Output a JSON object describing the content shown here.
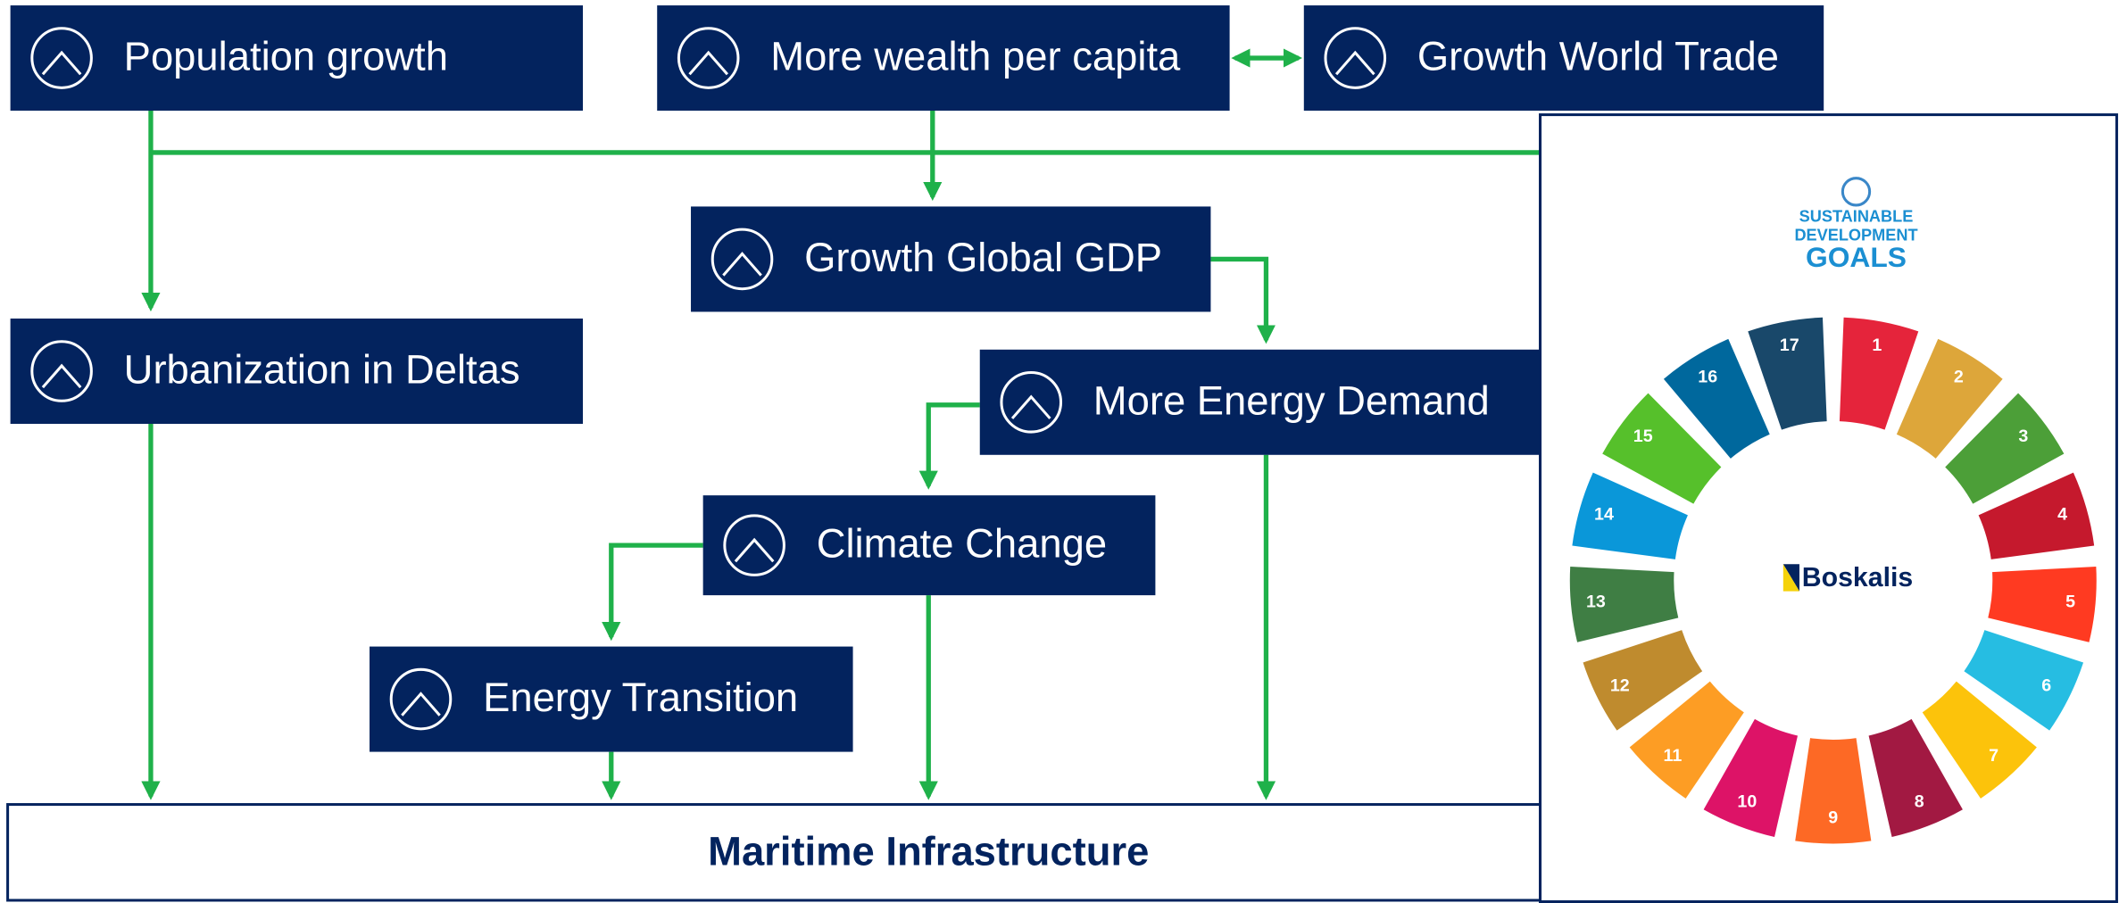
{
  "nodes": [
    {
      "label": "Population growth"
    },
    {
      "label": "More wealth per capita"
    },
    {
      "label": "Growth World Trade"
    },
    {
      "label": "Growth Global GDP"
    },
    {
      "label": "Urbanization in Deltas"
    },
    {
      "label": "More Energy Demand"
    },
    {
      "label": "Climate Change"
    },
    {
      "label": "Energy Transition"
    }
  ],
  "target": {
    "label": "Maritime Infrastructure"
  },
  "sdg_panel": {
    "title_lines": [
      "SUSTAINABLE",
      "DEVELOPMENT",
      "GOALS"
    ],
    "logo": "Boskalis",
    "goals": [
      {
        "number": "1",
        "color": "#e5243b"
      },
      {
        "number": "2",
        "color": "#dda63a"
      },
      {
        "number": "3",
        "color": "#4c9f38"
      },
      {
        "number": "4",
        "color": "#c5192d"
      },
      {
        "number": "5",
        "color": "#ff3a21"
      },
      {
        "number": "6",
        "color": "#26bde2"
      },
      {
        "number": "7",
        "color": "#fcc30b"
      },
      {
        "number": "8",
        "color": "#a21942"
      },
      {
        "number": "9",
        "color": "#fd6925"
      },
      {
        "number": "10",
        "color": "#dd1367"
      },
      {
        "number": "11",
        "color": "#fd9d24"
      },
      {
        "number": "12",
        "color": "#bf8b2e"
      },
      {
        "number": "13",
        "color": "#3f7e44"
      },
      {
        "number": "14",
        "color": "#0a97d9"
      },
      {
        "number": "15",
        "color": "#56c02b"
      },
      {
        "number": "16",
        "color": "#00689d"
      },
      {
        "number": "17",
        "color": "#19486a"
      }
    ]
  }
}
